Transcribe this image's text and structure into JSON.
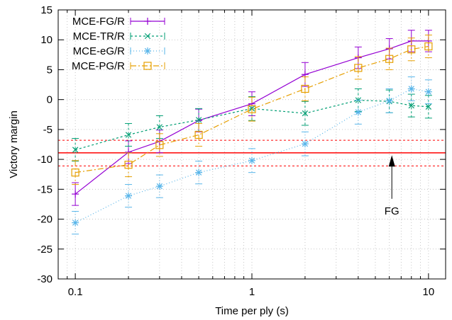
{
  "chart_data": {
    "type": "line",
    "xlabel": "Time per ply (s)",
    "ylabel": "Victory margin",
    "xscale": "log",
    "xlim": [
      0.08,
      12.5
    ],
    "ylim": [
      -30,
      15
    ],
    "xticks": [
      0.1,
      1,
      10
    ],
    "xtick_labels": [
      "0.1",
      "1",
      "10"
    ],
    "yticks": [
      -30,
      -25,
      -20,
      -15,
      -10,
      -5,
      0,
      5,
      10,
      15
    ],
    "ytick_labels": [
      "-30",
      "-25",
      "-20",
      "-15",
      "-10",
      "-5",
      "0",
      "5",
      "10",
      "15"
    ],
    "grid": true,
    "legend_position": "top-left",
    "x": [
      0.1,
      0.2,
      0.3,
      0.5,
      1,
      2,
      4,
      6,
      8,
      10
    ],
    "series": [
      {
        "name": "MCE-FG/R",
        "color": "#9400d3",
        "marker": "plus",
        "dash": "solid",
        "values": [
          -15.8,
          -8.8,
          -7.0,
          -3.5,
          -0.7,
          4.2,
          7.0,
          8.5,
          9.8,
          9.8
        ],
        "errors": [
          1.9,
          1.9,
          1.9,
          1.9,
          2.0,
          2.0,
          1.8,
          1.7,
          1.8,
          1.8
        ]
      },
      {
        "name": "MCE-TR/R",
        "color": "#009e73",
        "marker": "x",
        "dash": "dashed",
        "values": [
          -8.4,
          -5.9,
          -4.6,
          -3.4,
          -1.5,
          -2.3,
          -0.1,
          -0.3,
          -1.0,
          -1.2
        ],
        "errors": [
          1.9,
          1.9,
          1.9,
          1.9,
          2.0,
          2.0,
          1.9,
          1.9,
          1.9,
          1.9
        ]
      },
      {
        "name": "MCE-eG/R",
        "color": "#56b4e9",
        "marker": "star",
        "dash": "dotted",
        "values": [
          -20.6,
          -16.1,
          -14.5,
          -12.2,
          -10.2,
          -7.4,
          -2.1,
          -0.2,
          1.8,
          1.3
        ],
        "errors": [
          1.9,
          1.9,
          1.9,
          1.9,
          2.0,
          2.0,
          2.0,
          2.0,
          2.0,
          2.0
        ]
      },
      {
        "name": "MCE-PG/R",
        "color": "#e69f00",
        "marker": "square",
        "dash": "dashdot",
        "values": [
          -12.2,
          -10.9,
          -7.6,
          -5.9,
          -1.6,
          1.8,
          5.3,
          6.8,
          8.4,
          8.9
        ],
        "errors": [
          2.0,
          2.0,
          1.9,
          1.9,
          2.0,
          2.0,
          1.9,
          1.8,
          1.9,
          1.9
        ]
      }
    ],
    "reference_lines": [
      {
        "value": -8.9,
        "color": "#ff0000",
        "style": "solid"
      },
      {
        "value": -6.8,
        "color": "#ff0000",
        "style": "dotted"
      },
      {
        "value": -11.1,
        "color": "#ff0000",
        "style": "dotted"
      }
    ],
    "annotations": [
      {
        "text": "FG",
        "x": 6.2,
        "y": -19.2,
        "arrow_to_x": 6.2,
        "arrow_to_y": -9.3
      }
    ]
  }
}
